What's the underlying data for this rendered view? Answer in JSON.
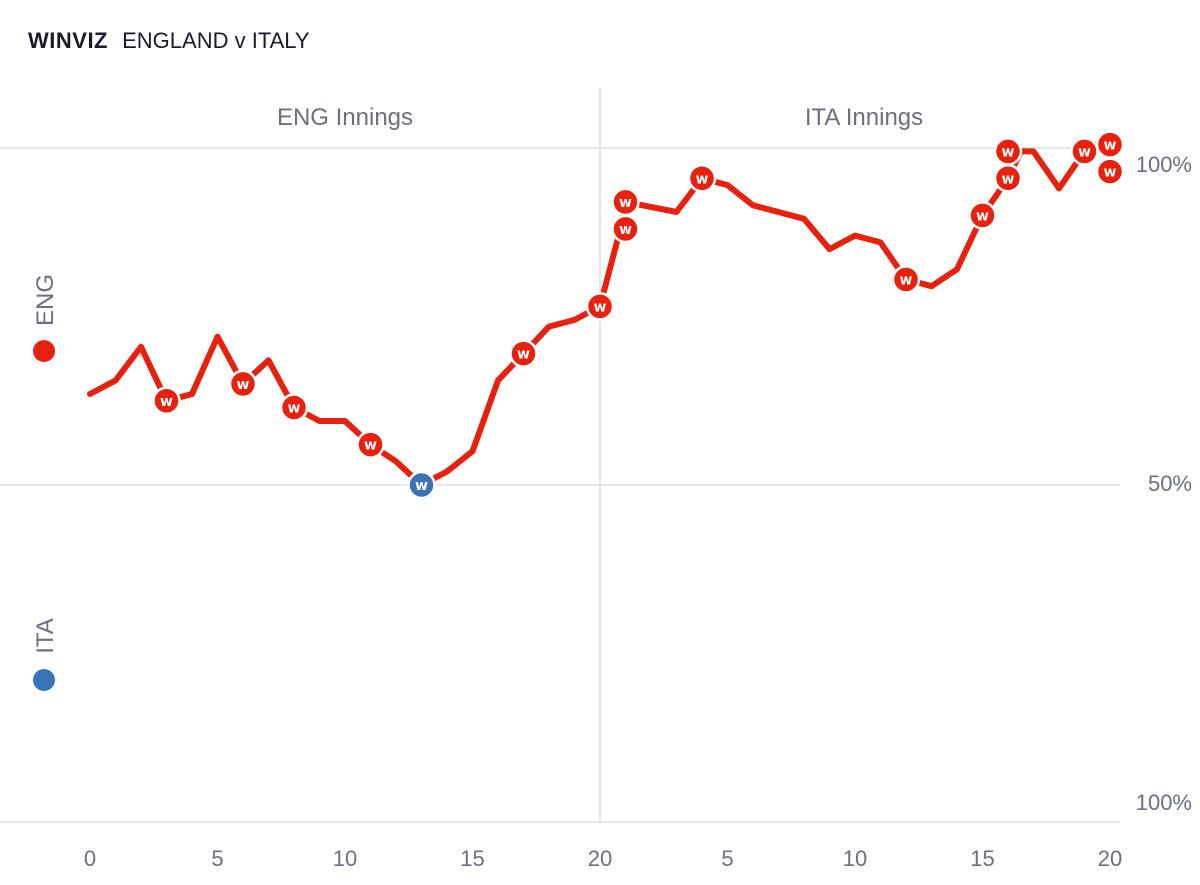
{
  "header": {
    "brand": "WINVIZ",
    "title": "ENGLAND v ITALY"
  },
  "colors": {
    "england": "#e8210f",
    "italy": "#3b74b4",
    "grid": "#e6e6ea",
    "text": "#6b6f80"
  },
  "teams": [
    {
      "label": "ENG",
      "color": "#e8210f"
    },
    {
      "label": "ITA",
      "color": "#3b74b4"
    }
  ],
  "chart_data": {
    "type": "line",
    "innings": [
      {
        "label": "ENG Innings",
        "x_ticks": [
          "0",
          "5",
          "10",
          "15",
          "20"
        ]
      },
      {
        "label": "ITA Innings",
        "x_ticks": [
          "5",
          "10",
          "15",
          "20"
        ]
      }
    ],
    "y_tick_labels": [
      {
        "value": 100,
        "label": "100%"
      },
      {
        "value": 50,
        "label": "50%"
      },
      {
        "value": 0,
        "label": "100%"
      }
    ],
    "ylim": [
      0,
      100
    ],
    "series": [
      {
        "over": [
          0,
          1,
          2,
          3,
          4,
          5,
          6,
          7,
          8,
          9,
          10,
          11,
          12,
          13,
          14,
          15,
          16,
          17,
          18,
          19,
          20,
          20.8,
          21,
          23,
          24,
          25,
          26,
          28,
          29,
          30,
          31,
          32,
          33,
          34,
          35,
          36,
          36.5,
          37,
          38,
          39,
          39.5,
          40,
          40
        ],
        "value": [
          63.5,
          65.5,
          70.5,
          62.5,
          63.5,
          72,
          65,
          68.5,
          61.5,
          59.5,
          59.5,
          56,
          53.5,
          50,
          52,
          55,
          65.5,
          69.5,
          73.5,
          74.5,
          76.5,
          88,
          92,
          90.5,
          95.5,
          94.5,
          91.5,
          89.5,
          85,
          87,
          86,
          80.5,
          79.5,
          82,
          90,
          95.5,
          99.5,
          99.5,
          94,
          99.5,
          100.5,
          100.5,
          96.5
        ]
      }
    ],
    "wickets": [
      {
        "over": 3,
        "value": 62.5,
        "team": "ENG",
        "symbol": "w"
      },
      {
        "over": 6,
        "value": 65,
        "team": "ENG",
        "symbol": "w"
      },
      {
        "over": 8,
        "value": 61.5,
        "team": "ENG",
        "symbol": "w"
      },
      {
        "over": 11,
        "value": 56,
        "team": "ENG",
        "symbol": "w"
      },
      {
        "over": 13,
        "value": 50,
        "team": "ITA",
        "symbol": "w"
      },
      {
        "over": 17,
        "value": 69.5,
        "team": "ENG",
        "symbol": "w"
      },
      {
        "over": 20,
        "value": 76.5,
        "team": "ENG",
        "symbol": "w"
      },
      {
        "over": 21,
        "value": 88,
        "team": "ENG",
        "symbol": "w"
      },
      {
        "over": 21,
        "value": 92,
        "team": "ENG",
        "symbol": "w"
      },
      {
        "over": 24,
        "value": 95.5,
        "team": "ENG",
        "symbol": "w"
      },
      {
        "over": 32,
        "value": 80.5,
        "team": "ENG",
        "symbol": "w"
      },
      {
        "over": 35,
        "value": 90,
        "team": "ENG",
        "symbol": "w"
      },
      {
        "over": 36,
        "value": 95.5,
        "team": "ENG",
        "symbol": "w"
      },
      {
        "over": 36,
        "value": 99.5,
        "team": "ENG",
        "symbol": "w"
      },
      {
        "over": 39,
        "value": 99.5,
        "team": "ENG",
        "symbol": "w"
      },
      {
        "over": 40,
        "value": 100.5,
        "team": "ENG",
        "symbol": "w"
      },
      {
        "over": 40,
        "value": 96.5,
        "team": "ENG",
        "symbol": "w"
      }
    ]
  }
}
